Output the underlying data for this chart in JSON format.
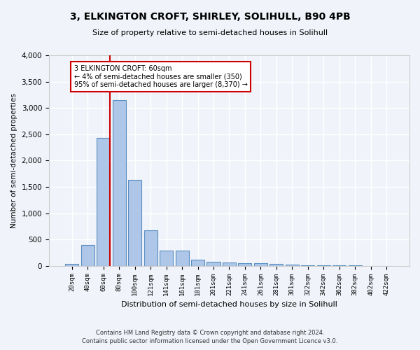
{
  "title": "3, ELKINGTON CROFT, SHIRLEY, SOLIHULL, B90 4PB",
  "subtitle": "Size of property relative to semi-detached houses in Solihull",
  "xlabel": "Distribution of semi-detached houses by size in Solihull",
  "ylabel": "Number of semi-detached properties",
  "footer_line1": "Contains HM Land Registry data © Crown copyright and database right 2024.",
  "footer_line2": "Contains public sector information licensed under the Open Government Licence v3.0.",
  "annotation_title": "3 ELKINGTON CROFT: 60sqm",
  "annotation_line1": "← 4% of semi-detached houses are smaller (350)",
  "annotation_line2": "95% of semi-detached houses are larger (8,370) →",
  "property_size_sqm": 60,
  "bar_categories": [
    "20sqm",
    "40sqm",
    "60sqm",
    "80sqm",
    "100sqm",
    "121sqm",
    "141sqm",
    "161sqm",
    "181sqm",
    "201sqm",
    "221sqm",
    "241sqm",
    "261sqm",
    "281sqm",
    "301sqm",
    "322sqm",
    "342sqm",
    "362sqm",
    "382sqm",
    "402sqm",
    "422sqm"
  ],
  "bar_values": [
    30,
    390,
    2430,
    3150,
    1630,
    670,
    285,
    285,
    120,
    70,
    60,
    55,
    45,
    35,
    25,
    15,
    8,
    5,
    3,
    2,
    1
  ],
  "bar_color": "#aec6e8",
  "bar_edge_color": "#5a8fc2",
  "marker_color": "#cc0000",
  "background_color": "#f0f4fa",
  "grid_color": "#ffffff",
  "ylim": [
    0,
    4000
  ],
  "yticks": [
    0,
    500,
    1000,
    1500,
    2000,
    2500,
    3000,
    3500,
    4000
  ]
}
